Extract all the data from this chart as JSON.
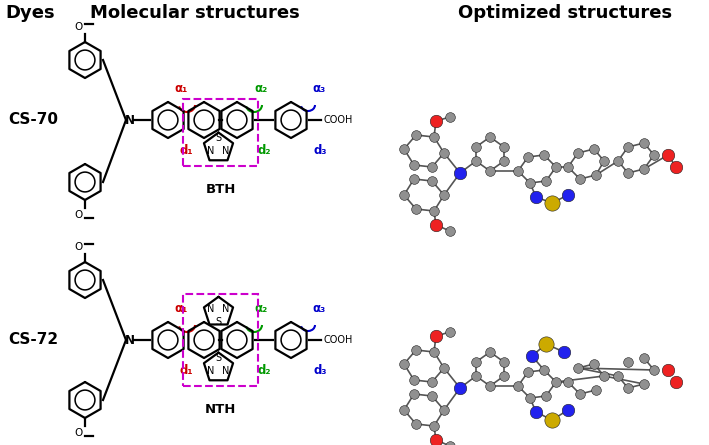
{
  "title_mol": "Molecular structures",
  "title_opt": "Optimized structures",
  "label_dyes": "Dyes",
  "dye1": "CS-70",
  "dye2": "CS-72",
  "box1_label": "BTH",
  "box2_label": "NTH",
  "bg_color": "#ffffff",
  "title_fontsize": 13,
  "label_fontsize": 11,
  "d1_color": "#cc0000",
  "d2_color": "#009900",
  "d3_color": "#0000cc",
  "box_color": "#cc00cc",
  "C_color": "#909090",
  "N_color": "#2222ee",
  "O_color": "#ee2222",
  "S_color": "#ccaa00",
  "H_color": "#bbbbbb",
  "bond_color": "#555555"
}
